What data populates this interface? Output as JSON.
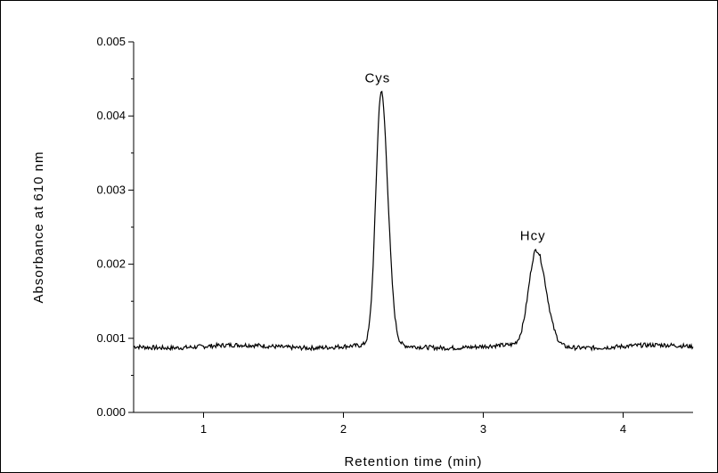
{
  "chart_data": {
    "type": "line",
    "xlabel": "Retention time (min)",
    "ylabel": "Absorbance at 610 nm",
    "xlim": [
      0.5,
      4.5
    ],
    "ylim": [
      0.0,
      0.005
    ],
    "xticks": [
      1,
      2,
      3,
      4
    ],
    "xtick_labels": [
      "1",
      "2",
      "3",
      "4"
    ],
    "yticks": [
      0.0,
      0.001,
      0.002,
      0.003,
      0.004,
      0.005
    ],
    "ytick_labels": [
      "0.000",
      "0.001",
      "0.002",
      "0.003",
      "0.004",
      "0.005"
    ],
    "grid": false,
    "baseline": 0.00089,
    "peaks": [
      {
        "label": "Cys",
        "center": 2.27,
        "height": 0.00431,
        "sigma": 0.038
      },
      {
        "label": "Hcy",
        "center": 3.38,
        "height": 0.00218,
        "sigma": 0.055
      }
    ],
    "series": [
      {
        "x": [
          0.5,
          0.6,
          0.7,
          0.8,
          0.9,
          1.0,
          1.1,
          1.2,
          1.3,
          1.4,
          1.5,
          1.6,
          1.7,
          1.8,
          1.9,
          2.0,
          2.1,
          2.15,
          2.18,
          2.2,
          2.22,
          2.24,
          2.26,
          2.27,
          2.28,
          2.3,
          2.32,
          2.34,
          2.36,
          2.38,
          2.4,
          2.45,
          2.5,
          2.6,
          2.7,
          2.8,
          2.9,
          3.0,
          3.1,
          3.2,
          3.25,
          3.28,
          3.3,
          3.32,
          3.34,
          3.36,
          3.38,
          3.4,
          3.42,
          3.44,
          3.46,
          3.48,
          3.5,
          3.55,
          3.6,
          3.7,
          3.8,
          3.9,
          4.0,
          4.1,
          4.2,
          4.3,
          4.4,
          4.5
        ],
        "y": [
          0.0009,
          0.00092,
          0.00091,
          0.00093,
          0.0009,
          0.00092,
          0.00091,
          0.00093,
          0.0009,
          0.00089,
          0.0009,
          0.00091,
          0.0009,
          0.0009,
          0.00089,
          0.00088,
          0.00087,
          0.00091,
          0.0012,
          0.0018,
          0.0028,
          0.0038,
          0.00428,
          0.00431,
          0.00425,
          0.0037,
          0.0027,
          0.0018,
          0.00125,
          0.001,
          0.00092,
          0.00088,
          0.00086,
          0.00088,
          0.00089,
          0.00088,
          0.00087,
          0.00088,
          0.00088,
          0.0009,
          0.001,
          0.0012,
          0.00145,
          0.0017,
          0.00195,
          0.00212,
          0.00218,
          0.00214,
          0.002,
          0.00178,
          0.00152,
          0.00128,
          0.0011,
          0.00093,
          0.00088,
          0.00087,
          0.00088,
          0.00089,
          0.00087,
          0.00086,
          0.00087,
          0.00087,
          0.00088,
          0.00089
        ]
      }
    ]
  }
}
